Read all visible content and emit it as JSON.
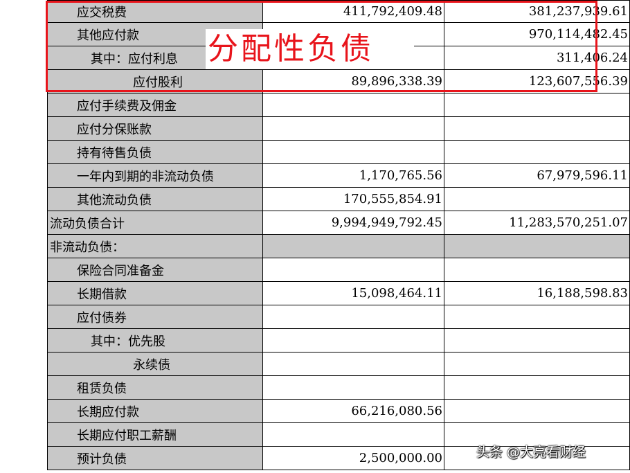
{
  "rows": [
    {
      "label": "应交税费",
      "indent": 1,
      "v1": "411,792,409.48",
      "v2": "381,237,939.61"
    },
    {
      "label": "其他应付款",
      "indent": 1,
      "v1": "",
      "v2": "970,114,482.45"
    },
    {
      "label": "其中：应付利息",
      "indent": 2,
      "v1": "",
      "v2": "311,406.24"
    },
    {
      "label": "应付股利",
      "indent": 3,
      "v1": "89,896,338.39",
      "v2": "123,607,556.39"
    },
    {
      "label": "应付手续费及佣金",
      "indent": 1,
      "v1": "",
      "v2": ""
    },
    {
      "label": "应付分保账款",
      "indent": 1,
      "v1": "",
      "v2": ""
    },
    {
      "label": "持有待售负债",
      "indent": 1,
      "v1": "",
      "v2": ""
    },
    {
      "label": "一年内到期的非流动负债",
      "indent": 1,
      "v1": "1,170,765.56",
      "v2": "67,979,596.11"
    },
    {
      "label": "其他流动负债",
      "indent": 1,
      "v1": "170,555,854.91",
      "v2": ""
    },
    {
      "label": "流动负债合计",
      "indent": 0,
      "v1": "9,994,949,792.45",
      "v2": "11,283,570,251.07"
    },
    {
      "label": "非流动负债：",
      "indent": 0,
      "v1": "",
      "v2": "",
      "section": true
    },
    {
      "label": "保险合同准备金",
      "indent": 1,
      "v1": "",
      "v2": ""
    },
    {
      "label": "长期借款",
      "indent": 1,
      "v1": "15,098,464.11",
      "v2": "16,188,598.83"
    },
    {
      "label": "应付债券",
      "indent": 1,
      "v1": "",
      "v2": ""
    },
    {
      "label": "其中：优先股",
      "indent": 2,
      "v1": "",
      "v2": ""
    },
    {
      "label": "永续债",
      "indent": 3,
      "v1": "",
      "v2": ""
    },
    {
      "label": "租赁负债",
      "indent": 1,
      "v1": "",
      "v2": ""
    },
    {
      "label": "长期应付款",
      "indent": 1,
      "v1": "66,216,080.56",
      "v2": ""
    },
    {
      "label": "长期应付职工薪酬",
      "indent": 1,
      "v1": "",
      "v2": ""
    },
    {
      "label": "预计负债",
      "indent": 1,
      "v1": "2,500,000.00",
      "v2": ""
    }
  ],
  "annotation": {
    "text": "分配性负债",
    "color": "#e8141b"
  },
  "watermark": {
    "text": "头条 @大亮看财经"
  }
}
